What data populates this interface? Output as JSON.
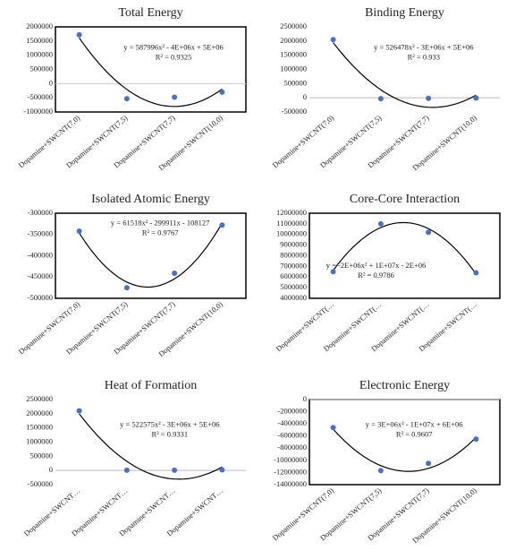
{
  "chart_data": [
    {
      "type": "scatter",
      "title": "Total Energy",
      "categories": [
        "Dopamine+SWCNT(7,0)",
        "Dopamine+SWCNT(7,5)",
        "Dopamine+SWCNT(7,7)",
        "Dopamine+SWCNT(10,0)"
      ],
      "values": [
        1720000,
        -530000,
        -480000,
        -300000
      ],
      "color": "#4472c4",
      "ylim": [
        -1000000,
        2000000
      ],
      "yticks": [
        -1000000,
        -500000,
        0,
        500000,
        1000000,
        1500000,
        2000000
      ],
      "trendline": "polynomial",
      "annotations": [
        "y = 587996x² - 4E+06x + 5E+06",
        "R² = 0.9325"
      ],
      "frame": true
    },
    {
      "type": "scatter",
      "title": "Binding Energy",
      "categories": [
        "Dopamine+SWCNT(7,0)",
        "Dopamine+SWCNT(7,5)",
        "Dopamine+SWCNT(7,7)",
        "Dopamine+SWCNT(10,0)"
      ],
      "values": [
        2050000,
        -30000,
        -20000,
        -10000
      ],
      "color": "#4472c4",
      "ylim": [
        -500000,
        2500000
      ],
      "yticks": [
        -500000,
        0,
        500000,
        1000000,
        1500000,
        2000000,
        2500000
      ],
      "trendline": "polynomial",
      "annotations": [
        "y = 526478x² - 3E+06x + 5E+06",
        "R² = 0.933"
      ],
      "frame": false
    },
    {
      "type": "scatter",
      "title": "Isolated Atomic Energy",
      "categories": [
        "Dopamine+SWCNT(7,0)",
        "Dopamine+SWCNT(7,5)",
        "Dopamine+SWCNT(7,7)",
        "Dopamine+SWCNT(10,0)"
      ],
      "values": [
        -342000,
        -475000,
        -441000,
        -328000
      ],
      "color": "#4472c4",
      "ylim": [
        -500000,
        -300000
      ],
      "yticks": [
        -500000,
        -450000,
        -400000,
        -350000,
        -300000
      ],
      "trendline": "polynomial",
      "annotations": [
        "y = 61518x² - 299911x - 108127",
        "R² = 0.9767"
      ],
      "frame": true
    },
    {
      "type": "scatter",
      "title": "Core-Core Interaction",
      "categories": [
        "Dopamine+SWCNT(…",
        "Dopamine+SWCNT(…",
        "Dopamine+SWCNT(…",
        "Dopamine+SWCNT(…"
      ],
      "values": [
        6500000,
        11000000,
        10200000,
        6400000
      ],
      "color": "#4472c4",
      "ylim": [
        4000000,
        12000000
      ],
      "yticks": [
        4000000,
        5000000,
        6000000,
        7000000,
        8000000,
        9000000,
        10000000,
        11000000,
        12000000
      ],
      "trendline": "polynomial",
      "annotations": [
        "y = -2E+06x² + 1E+07x - 2E+06",
        "R² = 0.9786"
      ],
      "frame": true
    },
    {
      "type": "scatter",
      "title": "Heat of Formation",
      "categories": [
        "Dopamine+SWCNT…",
        "Dopamine+SWCNT…",
        "Dopamine+SWCNT…",
        "Dopamine+SWCNT…"
      ],
      "values": [
        2100000,
        10000,
        10000,
        20000
      ],
      "color": "#4472c4",
      "ylim": [
        -500000,
        2500000
      ],
      "yticks": [
        -500000,
        0,
        500000,
        1000000,
        1500000,
        2000000,
        2500000
      ],
      "trendline": "polynomial",
      "annotations": [
        "y = 522575x² - 3E+06x + 5E+06",
        "R² = 0.9331"
      ],
      "frame": false
    },
    {
      "type": "scatter",
      "title": "Electronic Energy",
      "categories": [
        "Dopamine+SWCNT(7,0)",
        "Dopamine+SWCNT(7,5)",
        "Dopamine+SWCNT(7,7)",
        "Dopamine+SWCNT(10,0)"
      ],
      "values": [
        -4600000,
        -11700000,
        -10500000,
        -6500000
      ],
      "color": "#4472c4",
      "ylim": [
        -14000000,
        0
      ],
      "yticks": [
        -14000000,
        -12000000,
        -10000000,
        -8000000,
        -6000000,
        -4000000,
        -2000000,
        0
      ],
      "trendline": "polynomial",
      "annotations": [
        "y = 3E+06x² - 1E+07x + 6E+06",
        "R² = 0.9607"
      ],
      "frame": true
    }
  ]
}
